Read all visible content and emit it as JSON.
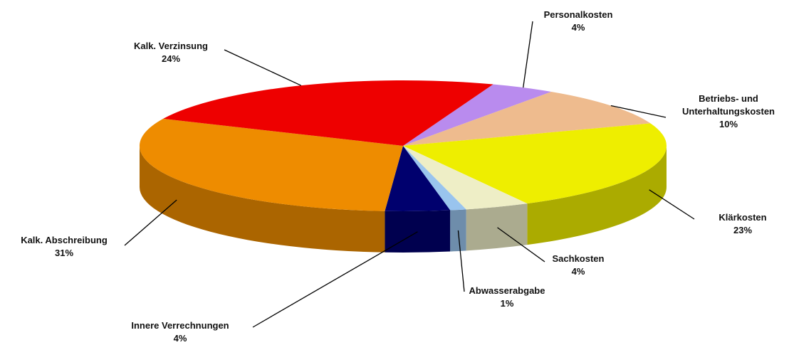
{
  "chart_data": {
    "type": "pie",
    "categories": [
      "Personalkosten",
      "Betriebs- und Unterhaltungskosten",
      "Klärkosten",
      "Sachkosten",
      "Abwasserabgabe",
      "Innere Verrechnungen",
      "Kalk. Abschreibung",
      "Kalk. Verzinsung"
    ],
    "values": [
      4,
      10,
      23,
      4,
      1,
      4,
      31,
      24
    ],
    "value_labels": [
      "4%",
      "10%",
      "23%",
      "4%",
      "1%",
      "4%",
      "31%",
      "24%"
    ],
    "colors": [
      "#b98bee",
      "#eebb8e",
      "#eeee00",
      "#eeeec6",
      "#99c4ee",
      "#00006e",
      "#ee8c00",
      "#ee0000"
    ]
  }
}
